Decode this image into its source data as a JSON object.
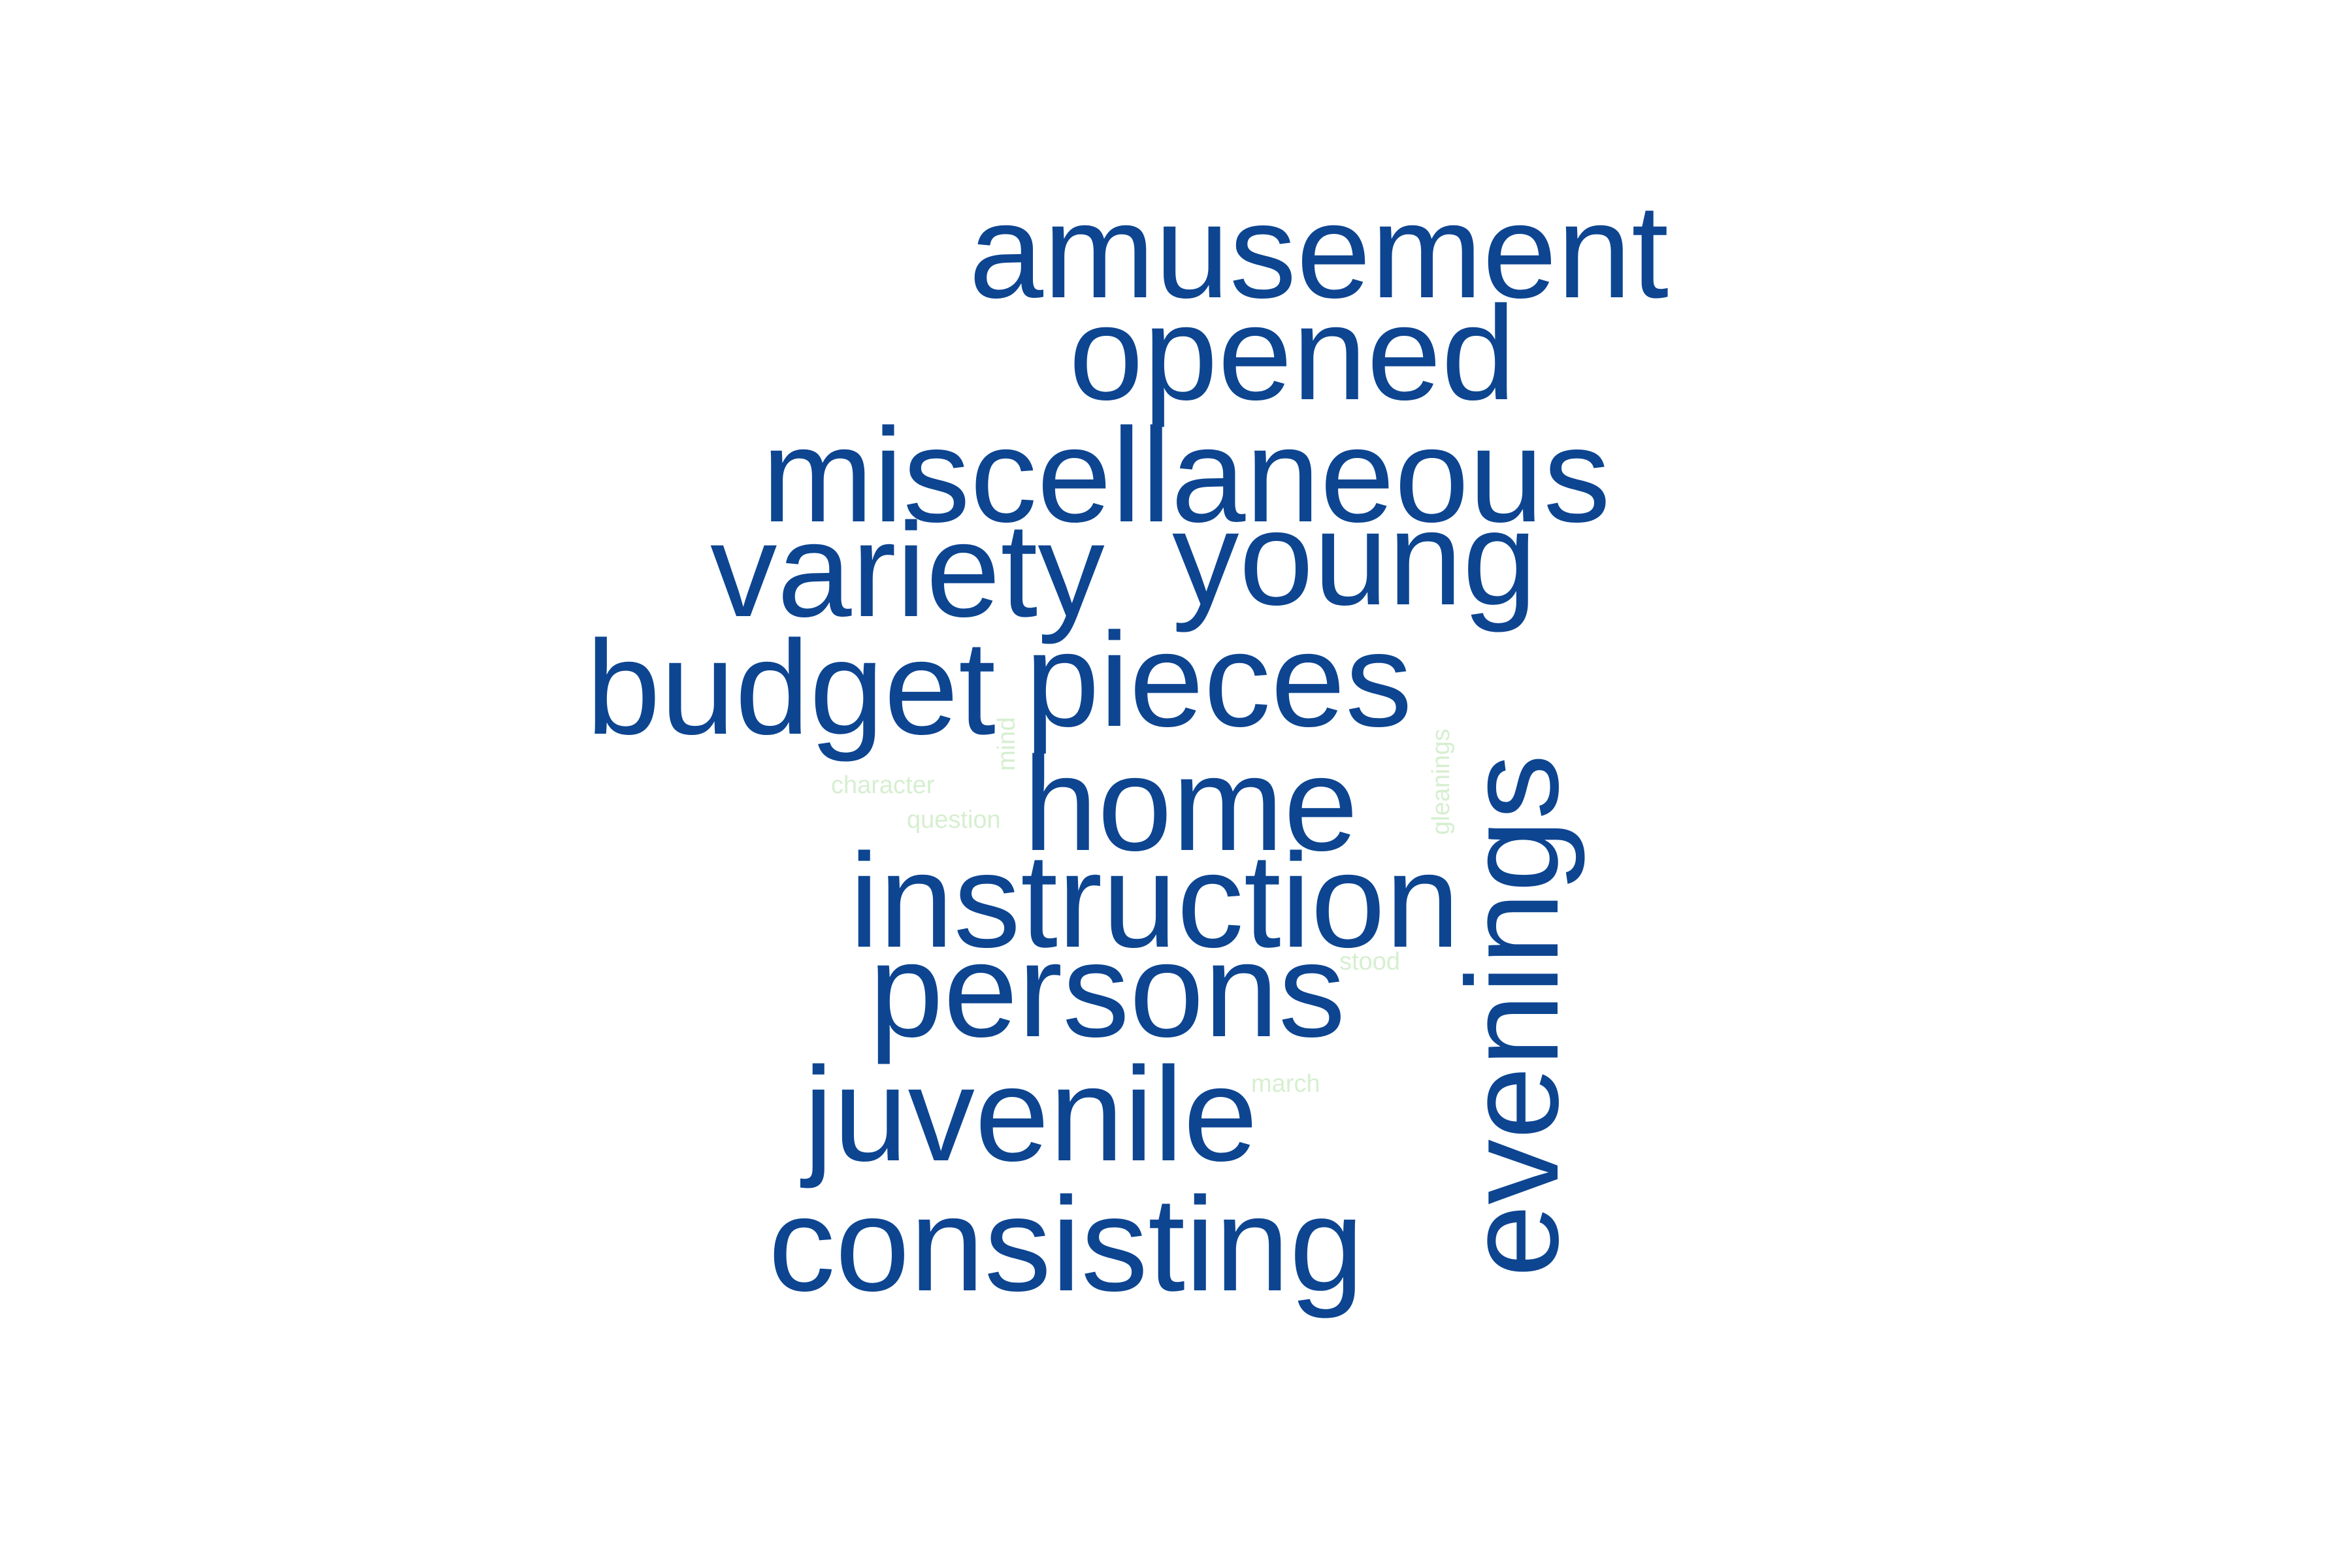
{
  "colors": {
    "primary_word": "#0d4591",
    "minor_word": "#d6efd0",
    "background": "#ffffff"
  },
  "words": {
    "amusement": "amusement",
    "opened": "opened",
    "miscellaneous": "miscellaneous",
    "variety": "variety",
    "young": "young",
    "budget": "budget",
    "pieces": "pieces",
    "home": "home",
    "instruction": "instruction",
    "persons": "persons",
    "juvenile": "juvenile",
    "consisting": "consisting",
    "evenings": "evenings",
    "character": "character",
    "question": "question",
    "mind": "mind",
    "gleanings": "gleanings",
    "stood": "stood",
    "march": "march"
  }
}
